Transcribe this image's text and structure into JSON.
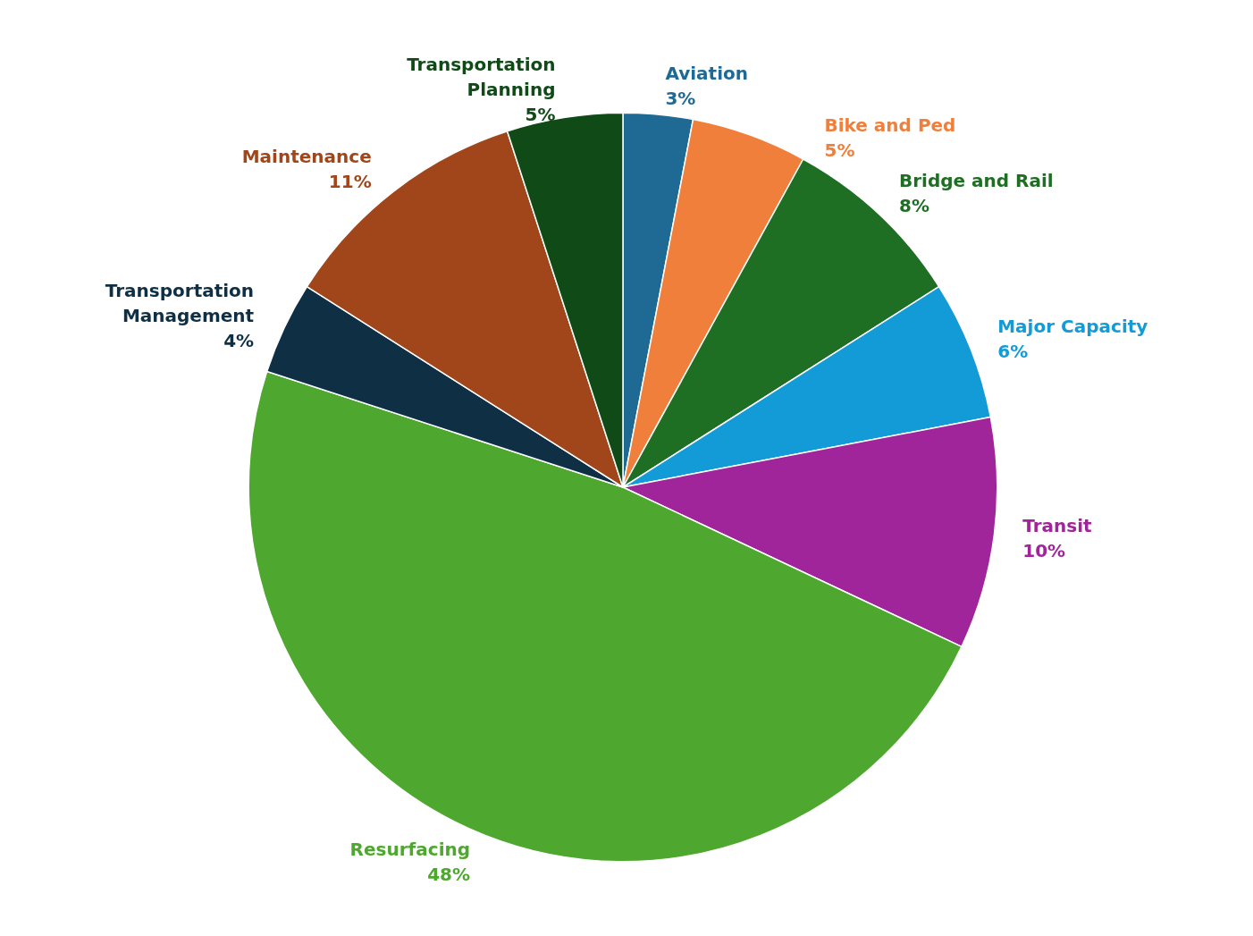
{
  "chart_data": {
    "type": "pie",
    "categories": [
      "Aviation",
      "Bike and Ped",
      "Bridge and Rail",
      "Major Capacity",
      "Transit",
      "Resurfacing",
      "Transportation Management",
      "Maintenance",
      "Transportation Planning"
    ],
    "values": [
      3,
      5,
      8,
      6,
      10,
      48,
      4,
      11,
      5
    ],
    "value_labels": [
      "3%",
      "5%",
      "8%",
      "6%",
      "10%",
      "48%",
      "4%",
      "11%",
      "5%"
    ],
    "colors": [
      "#1f6a94",
      "#f07f3c",
      "#1e6e24",
      "#129bd6",
      "#a0259a",
      "#4ea72e",
      "#0e2f44",
      "#a0461a",
      "#0f4a17"
    ]
  }
}
